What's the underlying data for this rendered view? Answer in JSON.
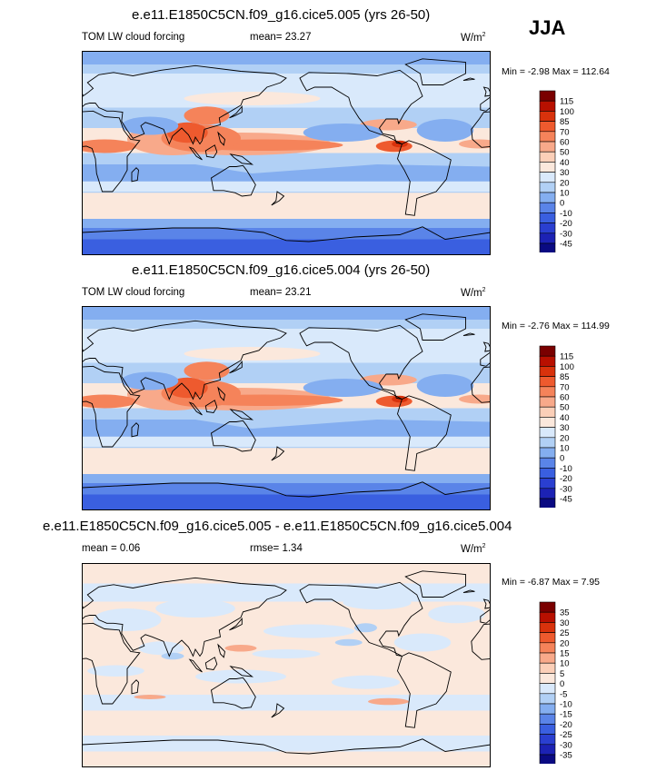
{
  "season": "JJA",
  "units_base": "W/m",
  "units_exp": "2",
  "min_label": "Min = ",
  "max_label": "Max = ",
  "mean_label": "mean= ",
  "rmse_label": "rmse= ",
  "chart_data": [
    {
      "type": "heatmap",
      "title": "e.e11.E1850C5CN.f09_g16.cice5.005 (yrs 26-50)",
      "variable": "TOM LW cloud forcing",
      "mean": "23.27",
      "min": "-2.98",
      "max": "112.64",
      "colorbar_levels": [
        "115",
        "100",
        "85",
        "70",
        "60",
        "50",
        "40",
        "30",
        "20",
        "10",
        "0",
        "-10",
        "-20",
        "-30",
        "-45"
      ],
      "colorbar_colors": [
        "#7a0000",
        "#b81000",
        "#d8320c",
        "#ee5a2e",
        "#f5835a",
        "#f8a98a",
        "#fbcfb8",
        "#fbe8dc",
        "#d9e9fb",
        "#b1d0f5",
        "#84aef0",
        "#5a84e8",
        "#3a5fe0",
        "#2a3fd0",
        "#1c22b4",
        "#0a0a82"
      ]
    },
    {
      "type": "heatmap",
      "title": "e.e11.E1850C5CN.f09_g16.cice5.004 (yrs 26-50)",
      "variable": "TOM LW cloud forcing",
      "mean": "23.21",
      "min": "-2.76",
      "max": "114.99",
      "colorbar_levels": [
        "115",
        "100",
        "85",
        "70",
        "60",
        "50",
        "40",
        "30",
        "20",
        "10",
        "0",
        "-10",
        "-20",
        "-30",
        "-45"
      ],
      "colorbar_colors": [
        "#7a0000",
        "#b81000",
        "#d8320c",
        "#ee5a2e",
        "#f5835a",
        "#f8a98a",
        "#fbcfb8",
        "#fbe8dc",
        "#d9e9fb",
        "#b1d0f5",
        "#84aef0",
        "#5a84e8",
        "#3a5fe0",
        "#2a3fd0",
        "#1c22b4",
        "#0a0a82"
      ]
    },
    {
      "type": "heatmap",
      "title": "e.e11.E1850C5CN.f09_g16.cice5.005 - e.e11.E1850C5CN.f09_g16.cice5.004",
      "mean": "0.06",
      "rmse": "1.34",
      "min": "-6.87",
      "max": "7.95",
      "colorbar_levels": [
        "35",
        "30",
        "25",
        "20",
        "15",
        "10",
        "5",
        "0",
        "-5",
        "-10",
        "-15",
        "-20",
        "-25",
        "-30",
        "-35"
      ],
      "colorbar_colors": [
        "#7a0000",
        "#b81000",
        "#d8320c",
        "#ee5a2e",
        "#f5835a",
        "#f8a98a",
        "#fbcfb8",
        "#fbe8dc",
        "#d9e9fb",
        "#b1d0f5",
        "#84aef0",
        "#5a84e8",
        "#3a5fe0",
        "#2a3fd0",
        "#1c22b4",
        "#0a0a82"
      ]
    }
  ]
}
